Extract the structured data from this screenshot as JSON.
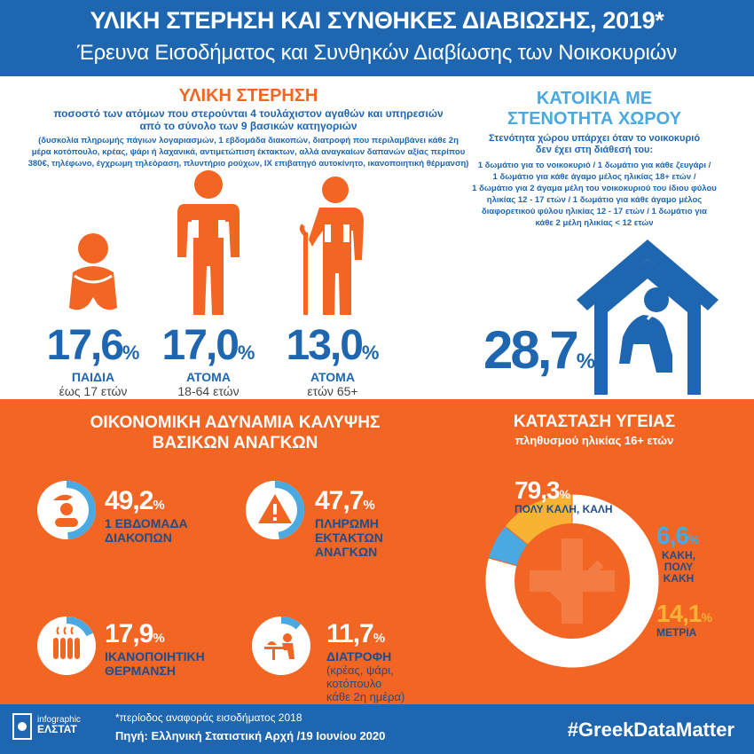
{
  "header": {
    "title": "ΥΛΙΚΗ ΣΤΕΡΗΣΗ ΚΑΙ ΣΥΝΘΗΚΕΣ ΔΙΑΒΙΩΣΗΣ, 2019*",
    "subtitle": "Έρευνα Εισοδήματος και Συνθηκών Διαβίωσης των Νοικοκυριών"
  },
  "deprivation": {
    "heading": "ΥΛΙΚΗ ΣΤΕΡΗΣΗ",
    "desc_line1": "ποσοστό των ατόμων που στερούνται 4 τουλάχιστον αγαθών και υπηρεσιών",
    "desc_line2": "από το σύνολο των 9 βασικών κατηγοριών",
    "detail_lines": [
      "(δυσκολία πληρωμής πάγιων λογαριασμών, 1 εβδομάδα διακοπών, διατροφή που περιλαμβάνει κάθε 2η",
      "μέρα κοτόπουλο, κρέας, ψάρι ή λαχανικά, αντιμετώπιση έκτακτων, αλλά αναγκαίων δαπανών αξίας περίπου",
      "380€, τηλέφωνο, έγχρωμη τηλεόραση, πλυντήριο ρούχων, ΙΧ επιβατηγό αυτοκίνητο, ικανοποιητική θέρμανση)"
    ],
    "groups": [
      {
        "value": "17,6",
        "unit": "%",
        "title": "ΠΑΙΔΙΑ",
        "sub": "έως 17 ετών"
      },
      {
        "value": "17,0",
        "unit": "%",
        "title": "ΑΤΟΜΑ",
        "sub": "18-64 ετών"
      },
      {
        "value": "13,0",
        "unit": "%",
        "title": "ΑΤΟΜΑ",
        "sub": "ετών 65+"
      }
    ]
  },
  "housing": {
    "heading_line1": "ΚΑΤΟΙΚΙΑ ΜΕ",
    "heading_line2": "ΣΤΕΝΟΤΗΤΑ ΧΩΡΟΥ",
    "intro_line1": "Στενότητα χώρου υπάρχει όταν το νοικοκυριό",
    "intro_line2": "δεν έχει στη διάθεσή του:",
    "detail_lines": [
      "1 δωμάτιο για το νοικοκυριό / 1 δωμάτιο για κάθε ζευγάρι /",
      "1 δωμάτιο για κάθε άγαμο μέλος ηλικίας 18+ ετών /",
      "1 δωμάτιο για 2 άγαμα μέλη του νοικοκυριού του ίδιου φύλου",
      "ηλικίας 12 - 17 ετών / 1 δωμάτιο για κάθε άγαμο μέλος",
      "διαφορετικού φύλου ηλικίας 12 - 17 ετών / 1 δωμάτιο για",
      "κάθε 2 μέλη ηλικίας < 12 ετών"
    ],
    "value": "28,7",
    "unit": "%"
  },
  "economic": {
    "heading_line1": "ΟΙΚΟΝΟΜΙΚΗ ΑΔΥΝΑΜΙΑ ΚΑΛΥΨΗΣ",
    "heading_line2": "ΒΑΣΙΚΩΝ ΑΝΑΓΚΩΝ",
    "items": [
      {
        "value": "49,2",
        "unit": "%",
        "label_line1": "1 ΕΒΔΟΜΑΔΑ",
        "label_line2": "ΔΙΑΚΟΠΩΝ",
        "label_line3": "",
        "icon": "vacation-icon",
        "fraction": 0.492
      },
      {
        "value": "47,7",
        "unit": "%",
        "label_line1": "ΠΛΗΡΩΜΗ",
        "label_line2": "ΕΚΤΑΚΤΩΝ",
        "label_line3": "ΑΝΑΓΚΩΝ",
        "icon": "warning-icon",
        "fraction": 0.477
      },
      {
        "value": "17,9",
        "unit": "%",
        "label_line1": "ΙΚΑΝΟΠΟΙΗΤΙΚΗ",
        "label_line2": "ΘΕΡΜΑΝΣΗ",
        "label_line3": "",
        "icon": "radiator-icon",
        "fraction": 0.179
      },
      {
        "value": "11,7",
        "unit": "%",
        "label_line1": "ΔΙΑΤΡΟΦΗ",
        "label_line2": "",
        "label_line3": "",
        "icon": "dining-icon",
        "fraction": 0.117,
        "note_lines": [
          "(κρέας, ψάρι,",
          "κοτόπουλο",
          "κάθε 2η ημέρα)"
        ]
      }
    ]
  },
  "health": {
    "heading": "ΚΑΤΑΣΤΑΣΗ ΥΓΕΙΑΣ",
    "subheading": "πληθυσμού ηλικίας 16+ ετών",
    "segments": [
      {
        "value": "79,3",
        "unit": "%",
        "label_line1": "ΠΟΛΥ ΚΑΛΗ, ΚΑΛΗ",
        "label_line2": "",
        "label_line3": "",
        "color": "#ffffff",
        "fraction": 0.793
      },
      {
        "value": "6,6",
        "unit": "%",
        "label_line1": "ΚΑΚΗ,",
        "label_line2": "ΠΟΛΥ",
        "label_line3": "ΚΑΚΗ",
        "color": "#4aa9e0",
        "fraction": 0.066
      },
      {
        "value": "14,1",
        "unit": "%",
        "label_line1": "ΜΕΤΡΙΑ",
        "label_line2": "",
        "label_line3": "",
        "color": "#f9b233",
        "fraction": 0.141
      }
    ]
  },
  "footer": {
    "logo_line1": "infographic",
    "logo_line2": "ΕΛΣΤΑΤ",
    "note": "*περίοδος αναφοράς εισοδήματος 2018",
    "source": "Πηγή: Ελληνική Στατιστική Αρχή /19 Ιουνίου 2020",
    "hashtag": "#GreekDataMatter"
  },
  "colors": {
    "blue": "#1f66b0",
    "orange": "#f26522",
    "light_blue": "#4aa9e0",
    "yellow": "#f9b233"
  }
}
